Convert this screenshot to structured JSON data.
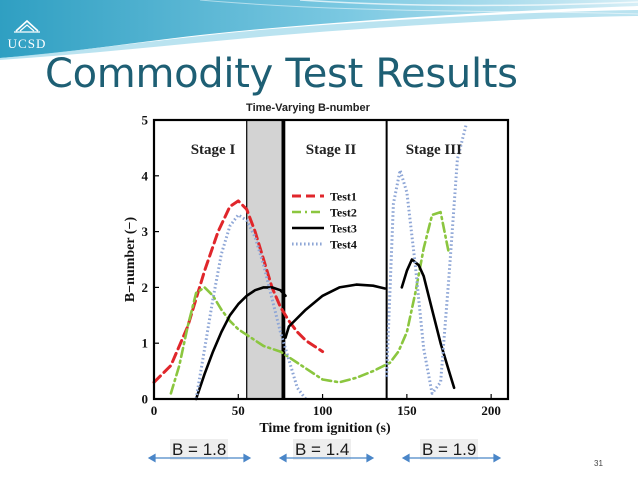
{
  "slide": {
    "title": "Commodity Test Results",
    "page_number": "31",
    "logo_text": "UCSD"
  },
  "colors": {
    "title": "#1e5f74",
    "banner": "#2f9fc2",
    "test1": "#e0262b",
    "test2": "#8bc63f",
    "test3": "#000000",
    "test4": "#8ea6d6",
    "arrow": "#4a86c8"
  },
  "annotations": {
    "b_values": [
      "B = 1.8",
      "B = 1.4",
      "B = 1.9"
    ]
  },
  "chart_data": {
    "type": "line",
    "title": "Time-Varying B-number",
    "xlabel": "Time from ignition (s)",
    "ylabel": "B−number (−)",
    "xlim": [
      0,
      210
    ],
    "ylim": [
      0,
      5
    ],
    "xticks": [
      0,
      50,
      100,
      150,
      200
    ],
    "yticks": [
      0,
      1,
      2,
      3,
      4,
      5
    ],
    "grid": false,
    "legend_position": "center",
    "stage_labels": [
      {
        "text": "Stage I",
        "x": 35
      },
      {
        "text": "Stage II",
        "x": 105
      },
      {
        "text": "Stage III",
        "x": 166
      }
    ],
    "stage_boundaries": [
      77,
      138
    ],
    "shaded_region": [
      55,
      76
    ],
    "series": [
      {
        "name": "Test1",
        "style": "dashed",
        "x": [
          0,
          10,
          20,
          30,
          38,
          45,
          50,
          55,
          60,
          65,
          70,
          75,
          80,
          85,
          90,
          95,
          100
        ],
        "y": [
          0.3,
          0.6,
          1.3,
          2.3,
          3.0,
          3.45,
          3.55,
          3.4,
          3.0,
          2.5,
          2.0,
          1.65,
          1.4,
          1.2,
          1.05,
          0.95,
          0.85
        ]
      },
      {
        "name": "Test2",
        "style": "dashdot",
        "x": [
          10,
          15,
          20,
          25,
          30,
          35,
          40,
          45,
          50,
          55,
          60,
          65,
          70,
          75,
          80,
          90,
          100,
          110,
          120,
          130,
          140,
          145,
          150,
          155,
          160,
          165,
          170,
          175
        ],
        "y": [
          0.1,
          0.6,
          1.3,
          1.9,
          2.0,
          1.85,
          1.6,
          1.4,
          1.25,
          1.15,
          1.05,
          0.95,
          0.9,
          0.85,
          0.75,
          0.55,
          0.35,
          0.3,
          0.38,
          0.5,
          0.65,
          0.85,
          1.2,
          1.9,
          2.7,
          3.3,
          3.35,
          2.6
        ]
      },
      {
        "name": "Test3",
        "style": "solid",
        "segments": [
          {
            "x": [
              25,
              30,
              35,
              40,
              45,
              50,
              55,
              60,
              65,
              70,
              75,
              78
            ],
            "y": [
              0.0,
              0.45,
              0.85,
              1.2,
              1.5,
              1.7,
              1.85,
              1.95,
              2.0,
              2.0,
              1.95,
              1.85
            ]
          },
          {
            "x": [
              78,
              80,
              90,
              100,
              110,
              120,
              130,
              137
            ],
            "y": [
              1.1,
              1.3,
              1.6,
              1.85,
              2.0,
              2.05,
              2.03,
              1.98
            ]
          },
          {
            "x": [
              147,
              150,
              153,
              157,
              160,
              165,
              170,
              175,
              178
            ],
            "y": [
              2.0,
              2.3,
              2.5,
              2.4,
              2.2,
              1.6,
              1.0,
              0.5,
              0.2
            ]
          }
        ]
      },
      {
        "name": "Test4",
        "style": "dotted",
        "segments": [
          {
            "x": [
              25,
              30,
              35,
              40,
              45,
              50,
              55,
              60,
              65,
              70,
              75,
              80,
              85,
              90
            ],
            "y": [
              0.0,
              0.9,
              1.8,
              2.6,
              3.1,
              3.3,
              3.2,
              2.9,
              2.4,
              1.8,
              1.2,
              0.7,
              0.2,
              0.0
            ]
          },
          {
            "x": [
              138,
              142,
              146,
              150,
              155,
              160,
              165,
              170,
              175,
              180,
              185
            ],
            "y": [
              0.4,
              3.5,
              4.1,
              3.7,
              2.4,
              0.9,
              0.1,
              0.3,
              2.2,
              4.3,
              4.9
            ]
          }
        ]
      }
    ]
  }
}
